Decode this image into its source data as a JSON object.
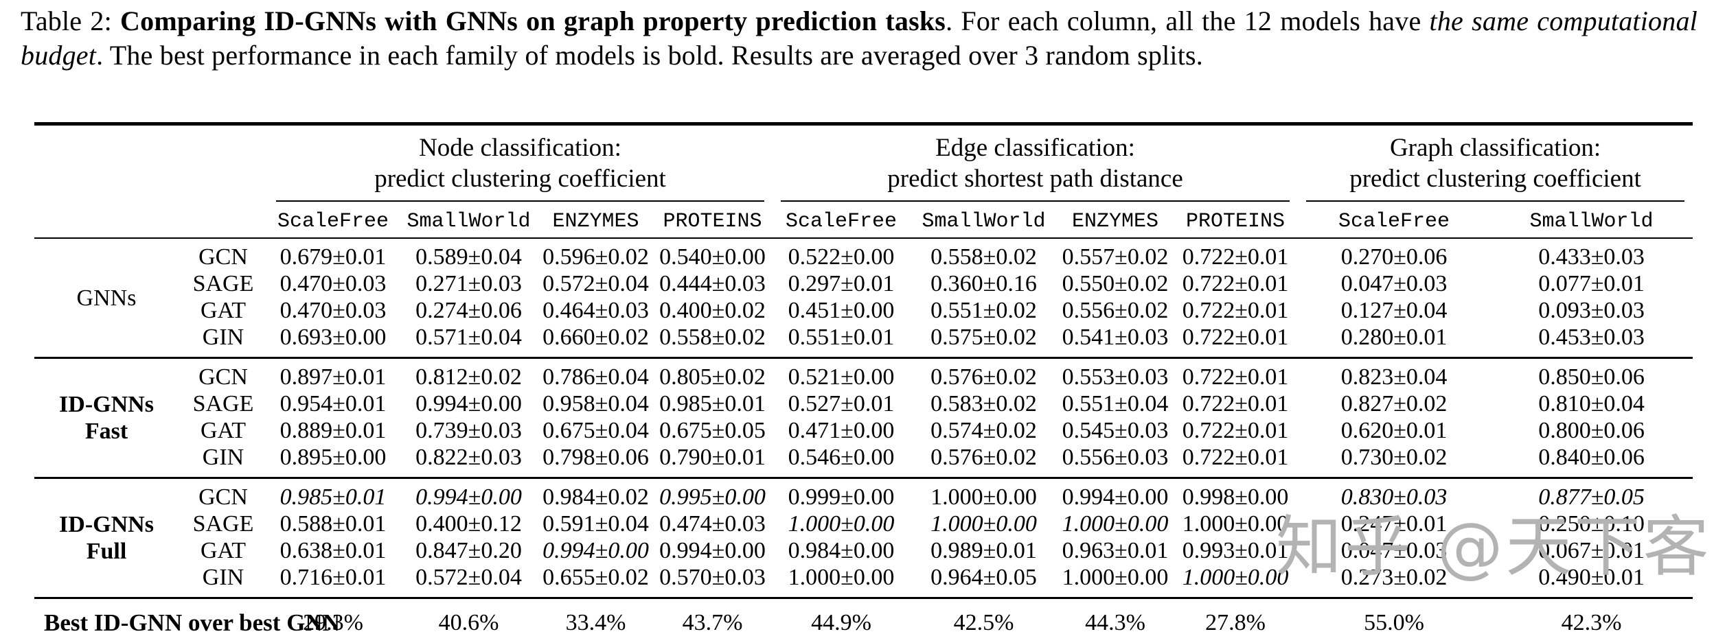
{
  "caption": {
    "segments": [
      {
        "text": "Table 2: ",
        "style": "normal"
      },
      {
        "text": "Comparing ID-GNNs with GNNs on graph property prediction tasks",
        "style": "bold"
      },
      {
        "text": ". For each column, all the 12 models have ",
        "style": "normal"
      },
      {
        "text": "the same computational budget",
        "style": "italic"
      },
      {
        "text": ". The best performance in each family of models is bold. Results are averaged over 3 random splits.",
        "style": "normal"
      }
    ]
  },
  "table": {
    "groups": [
      {
        "title_line1": "Node classification:",
        "title_line2": "predict clustering coefficient",
        "span": 4
      },
      {
        "title_line1": "Edge classification:",
        "title_line2": "predict shortest path distance",
        "span": 4
      },
      {
        "title_line1": "Graph classification:",
        "title_line2": "predict clustering coefficient",
        "span": 2
      }
    ],
    "columns": [
      "ScaleFree",
      "SmallWorld",
      "ENZYMES",
      "PROTEINS",
      "ScaleFree",
      "SmallWorld",
      "ENZYMES",
      "PROTEINS",
      "ScaleFree",
      "SmallWorld"
    ],
    "blocks": [
      {
        "family_lines": [
          "GNNs"
        ],
        "family_bold": false,
        "rows": [
          {
            "model": "GCN",
            "cells": [
              {
                "t": "0.679±0.01",
                "s": "n"
              },
              {
                "t": "0.589±0.04",
                "s": "b"
              },
              {
                "t": "0.596±0.02",
                "s": "n"
              },
              {
                "t": "0.540±0.00",
                "s": "n"
              },
              {
                "t": "0.522±0.00",
                "s": "n"
              },
              {
                "t": "0.558±0.02",
                "s": "n"
              },
              {
                "t": "0.557±0.02",
                "s": "b"
              },
              {
                "t": "0.722±0.01",
                "s": "b"
              },
              {
                "t": "0.270±0.06",
                "s": "n"
              },
              {
                "t": "0.433±0.03",
                "s": "n"
              }
            ]
          },
          {
            "model": "SAGE",
            "cells": [
              {
                "t": "0.470±0.03",
                "s": "n"
              },
              {
                "t": "0.271±0.03",
                "s": "n"
              },
              {
                "t": "0.572±0.04",
                "s": "n"
              },
              {
                "t": "0.444±0.03",
                "s": "n"
              },
              {
                "t": "0.297±0.01",
                "s": "n"
              },
              {
                "t": "0.360±0.16",
                "s": "n"
              },
              {
                "t": "0.550±0.02",
                "s": "n"
              },
              {
                "t": "0.722±0.01",
                "s": "n"
              },
              {
                "t": "0.047±0.03",
                "s": "n"
              },
              {
                "t": "0.077±0.01",
                "s": "n"
              }
            ]
          },
          {
            "model": "GAT",
            "cells": [
              {
                "t": "0.470±0.03",
                "s": "n"
              },
              {
                "t": "0.274±0.06",
                "s": "n"
              },
              {
                "t": "0.464±0.03",
                "s": "n"
              },
              {
                "t": "0.400±0.02",
                "s": "n"
              },
              {
                "t": "0.451±0.00",
                "s": "n"
              },
              {
                "t": "0.551±0.02",
                "s": "n"
              },
              {
                "t": "0.556±0.02",
                "s": "n"
              },
              {
                "t": "0.722±0.01",
                "s": "n"
              },
              {
                "t": "0.127±0.04",
                "s": "n"
              },
              {
                "t": "0.093±0.03",
                "s": "n"
              }
            ]
          },
          {
            "model": "GIN",
            "cells": [
              {
                "t": "0.693±0.00",
                "s": "b"
              },
              {
                "t": "0.571±0.04",
                "s": "n"
              },
              {
                "t": "0.660±0.02",
                "s": "b"
              },
              {
                "t": "0.558±0.02",
                "s": "b"
              },
              {
                "t": "0.551±0.01",
                "s": "b"
              },
              {
                "t": "0.575±0.02",
                "s": "b"
              },
              {
                "t": "0.541±0.03",
                "s": "n"
              },
              {
                "t": "0.722±0.01",
                "s": "n"
              },
              {
                "t": "0.280±0.01",
                "s": "b"
              },
              {
                "t": "0.453±0.03",
                "s": "b"
              }
            ]
          }
        ]
      },
      {
        "family_lines": [
          "ID-GNNs",
          "Fast"
        ],
        "family_bold": true,
        "rows": [
          {
            "model": "GCN",
            "cells": [
              {
                "t": "0.897±0.01",
                "s": "n"
              },
              {
                "t": "0.812±0.02",
                "s": "n"
              },
              {
                "t": "0.786±0.04",
                "s": "n"
              },
              {
                "t": "0.805±0.02",
                "s": "n"
              },
              {
                "t": "0.521±0.00",
                "s": "n"
              },
              {
                "t": "0.576±0.02",
                "s": "n"
              },
              {
                "t": "0.553±0.03",
                "s": "n"
              },
              {
                "t": "0.722±0.01",
                "s": "n"
              },
              {
                "t": "0.823±0.04",
                "s": "n"
              },
              {
                "t": "0.850±0.06",
                "s": "b"
              }
            ]
          },
          {
            "model": "SAGE",
            "cells": [
              {
                "t": "0.954±0.01",
                "s": "b"
              },
              {
                "t": "0.994±0.00",
                "s": "b"
              },
              {
                "t": "0.958±0.04",
                "s": "b"
              },
              {
                "t": "0.985±0.01",
                "s": "b"
              },
              {
                "t": "0.527±0.01",
                "s": "n"
              },
              {
                "t": "0.583±0.02",
                "s": "b"
              },
              {
                "t": "0.551±0.04",
                "s": "n"
              },
              {
                "t": "0.722±0.01",
                "s": "b"
              },
              {
                "t": "0.827±0.02",
                "s": "b"
              },
              {
                "t": "0.810±0.04",
                "s": "n"
              }
            ]
          },
          {
            "model": "GAT",
            "cells": [
              {
                "t": "0.889±0.01",
                "s": "n"
              },
              {
                "t": "0.739±0.03",
                "s": "n"
              },
              {
                "t": "0.675±0.04",
                "s": "n"
              },
              {
                "t": "0.675±0.05",
                "s": "n"
              },
              {
                "t": "0.471±0.00",
                "s": "n"
              },
              {
                "t": "0.574±0.02",
                "s": "n"
              },
              {
                "t": "0.545±0.03",
                "s": "n"
              },
              {
                "t": "0.722±0.01",
                "s": "n"
              },
              {
                "t": "0.620±0.01",
                "s": "n"
              },
              {
                "t": "0.800±0.06",
                "s": "n"
              }
            ]
          },
          {
            "model": "GIN",
            "cells": [
              {
                "t": "0.895±0.00",
                "s": "n"
              },
              {
                "t": "0.822±0.03",
                "s": "n"
              },
              {
                "t": "0.798±0.06",
                "s": "n"
              },
              {
                "t": "0.790±0.01",
                "s": "n"
              },
              {
                "t": "0.546±0.00",
                "s": "b"
              },
              {
                "t": "0.576±0.02",
                "s": "n"
              },
              {
                "t": "0.556±0.03",
                "s": "b"
              },
              {
                "t": "0.722±0.01",
                "s": "n"
              },
              {
                "t": "0.730±0.02",
                "s": "n"
              },
              {
                "t": "0.840±0.06",
                "s": "n"
              }
            ]
          }
        ]
      },
      {
        "family_lines": [
          "ID-GNNs",
          "Full"
        ],
        "family_bold": true,
        "rows": [
          {
            "model": "GCN",
            "cells": [
              {
                "t": "0.985±0.01",
                "s": "bi"
              },
              {
                "t": "0.994±0.00",
                "s": "bi"
              },
              {
                "t": "0.984±0.02",
                "s": "n"
              },
              {
                "t": "0.995±0.00",
                "s": "bi"
              },
              {
                "t": "0.999±0.00",
                "s": "n"
              },
              {
                "t": "1.000±0.00",
                "s": "n"
              },
              {
                "t": "0.994±0.00",
                "s": "n"
              },
              {
                "t": "0.998±0.00",
                "s": "n"
              },
              {
                "t": "0.830±0.03",
                "s": "bi"
              },
              {
                "t": "0.877±0.05",
                "s": "bi"
              }
            ]
          },
          {
            "model": "SAGE",
            "cells": [
              {
                "t": "0.588±0.01",
                "s": "n"
              },
              {
                "t": "0.400±0.12",
                "s": "n"
              },
              {
                "t": "0.591±0.04",
                "s": "n"
              },
              {
                "t": "0.474±0.03",
                "s": "n"
              },
              {
                "t": "1.000±0.00",
                "s": "bi"
              },
              {
                "t": "1.000±0.00",
                "s": "bi"
              },
              {
                "t": "1.000±0.00",
                "s": "bi"
              },
              {
                "t": "1.000±0.00",
                "s": "n"
              },
              {
                "t": "0.247±0.01",
                "s": "n"
              },
              {
                "t": "0.250±0.10",
                "s": "n"
              }
            ]
          },
          {
            "model": "GAT",
            "cells": [
              {
                "t": "0.638±0.01",
                "s": "n"
              },
              {
                "t": "0.847±0.20",
                "s": "n"
              },
              {
                "t": "0.994±0.00",
                "s": "bi"
              },
              {
                "t": "0.994±0.00",
                "s": "n"
              },
              {
                "t": "0.984±0.00",
                "s": "n"
              },
              {
                "t": "0.989±0.01",
                "s": "n"
              },
              {
                "t": "0.963±0.01",
                "s": "n"
              },
              {
                "t": "0.993±0.01",
                "s": "n"
              },
              {
                "t": "0.047±0.03",
                "s": "n"
              },
              {
                "t": "0.067±0.01",
                "s": "n"
              }
            ]
          },
          {
            "model": "GIN",
            "cells": [
              {
                "t": "0.716±0.01",
                "s": "n"
              },
              {
                "t": "0.572±0.04",
                "s": "n"
              },
              {
                "t": "0.655±0.02",
                "s": "n"
              },
              {
                "t": "0.570±0.03",
                "s": "n"
              },
              {
                "t": "1.000±0.00",
                "s": "n"
              },
              {
                "t": "0.964±0.05",
                "s": "n"
              },
              {
                "t": "1.000±0.00",
                "s": "n"
              },
              {
                "t": "1.000±0.00",
                "s": "bi"
              },
              {
                "t": "0.273±0.02",
                "s": "n"
              },
              {
                "t": "0.490±0.01",
                "s": "n"
              }
            ]
          }
        ]
      }
    ],
    "footer": {
      "label": "Best ID-GNN over best GNN",
      "values": [
        "29.3%",
        "40.6%",
        "33.4%",
        "43.7%",
        "44.9%",
        "42.5%",
        "44.3%",
        "27.8%",
        "55.0%",
        "42.3%"
      ]
    }
  },
  "watermark": {
    "text": "知乎 @天下客"
  },
  "colors": {
    "text": "#000000",
    "background": "#ffffff",
    "watermark": "#b3b3b3"
  }
}
